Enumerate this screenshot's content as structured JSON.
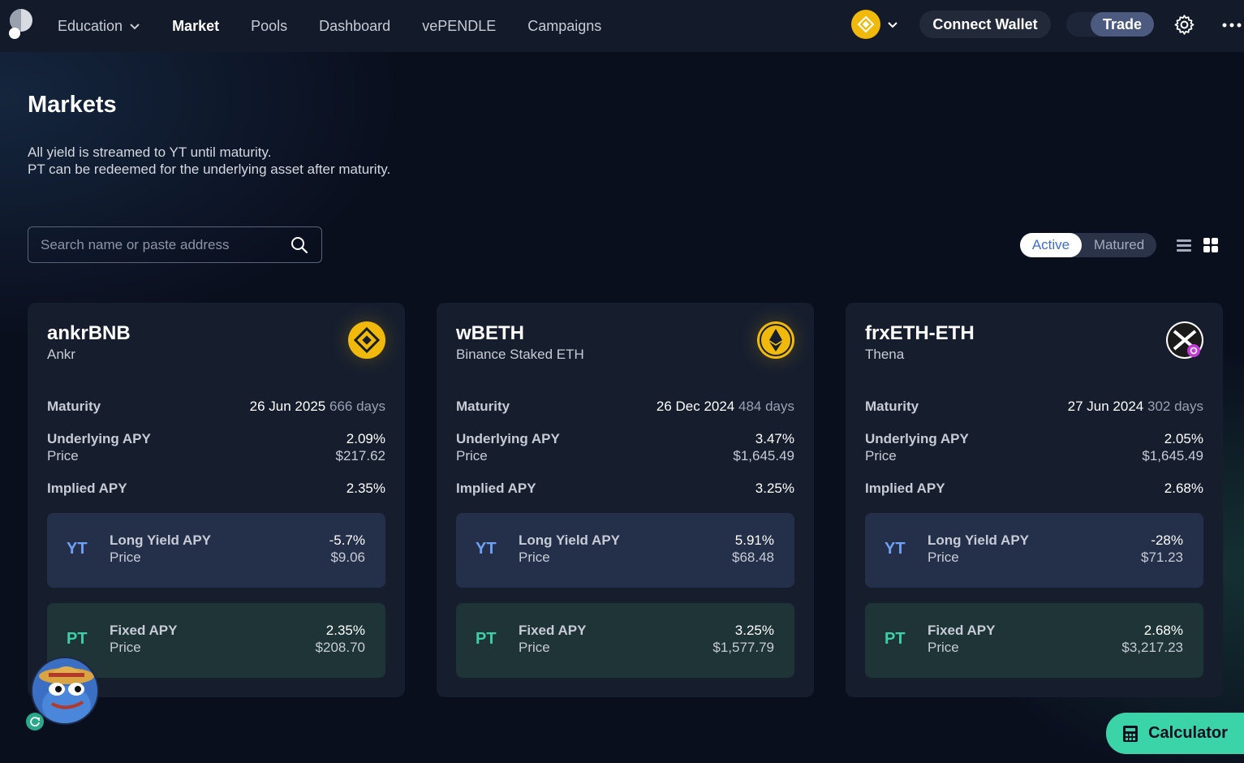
{
  "nav": {
    "items": [
      {
        "label": "Education",
        "has_dropdown": true
      },
      {
        "label": "Market",
        "active": true
      },
      {
        "label": "Pools"
      },
      {
        "label": "Dashboard"
      },
      {
        "label": "vePENDLE"
      },
      {
        "label": "Campaigns"
      }
    ],
    "connect_wallet": "Connect Wallet",
    "trade": "Trade"
  },
  "header": {
    "title": "Markets",
    "line1": "All yield is streamed to YT until maturity.",
    "line2": "PT can be redeemed for the underlying asset after maturity."
  },
  "search": {
    "placeholder": "Search name or paste address"
  },
  "filter": {
    "active": "Active",
    "matured": "Matured"
  },
  "labels": {
    "maturity": "Maturity",
    "underlying_apy": "Underlying APY",
    "price": "Price",
    "implied_apy": "Implied APY",
    "yt_tag": "YT",
    "pt_tag": "PT",
    "long_yield_apy": "Long Yield APY",
    "fixed_apy": "Fixed APY"
  },
  "cards": [
    {
      "name": "ankrBNB",
      "protocol": "Ankr",
      "icon": "bnb-icon",
      "maturity_date": "26 Jun 2025",
      "maturity_days": "666 days",
      "underlying_apy": "2.09%",
      "underlying_price": "$217.62",
      "implied_apy": "2.35%",
      "yt_apy": "-5.7%",
      "yt_price": "$9.06",
      "pt_apy": "2.35%",
      "pt_price": "$208.70"
    },
    {
      "name": "wBETH",
      "protocol": "Binance Staked ETH",
      "icon": "eth-icon",
      "maturity_date": "26 Dec 2024",
      "maturity_days": "484 days",
      "underlying_apy": "3.47%",
      "underlying_price": "$1,645.49",
      "implied_apy": "3.25%",
      "yt_apy": "5.91%",
      "yt_price": "$68.48",
      "pt_apy": "3.25%",
      "pt_price": "$1,577.79"
    },
    {
      "name": "frxETH-ETH",
      "protocol": "Thena",
      "icon": "frax-icon",
      "maturity_date": "27 Jun 2024",
      "maturity_days": "302 days",
      "underlying_apy": "2.05%",
      "underlying_price": "$1,645.49",
      "implied_apy": "2.68%",
      "yt_apy": "-28%",
      "yt_price": "$71.23",
      "pt_apy": "2.68%",
      "pt_price": "$3,217.23"
    }
  ],
  "calculator": "Calculator",
  "colors": {
    "accent": "#3bd3a8",
    "yt": "#6fa0f5",
    "pt": "#3fcfa8",
    "bnb": "#f0b90b"
  }
}
